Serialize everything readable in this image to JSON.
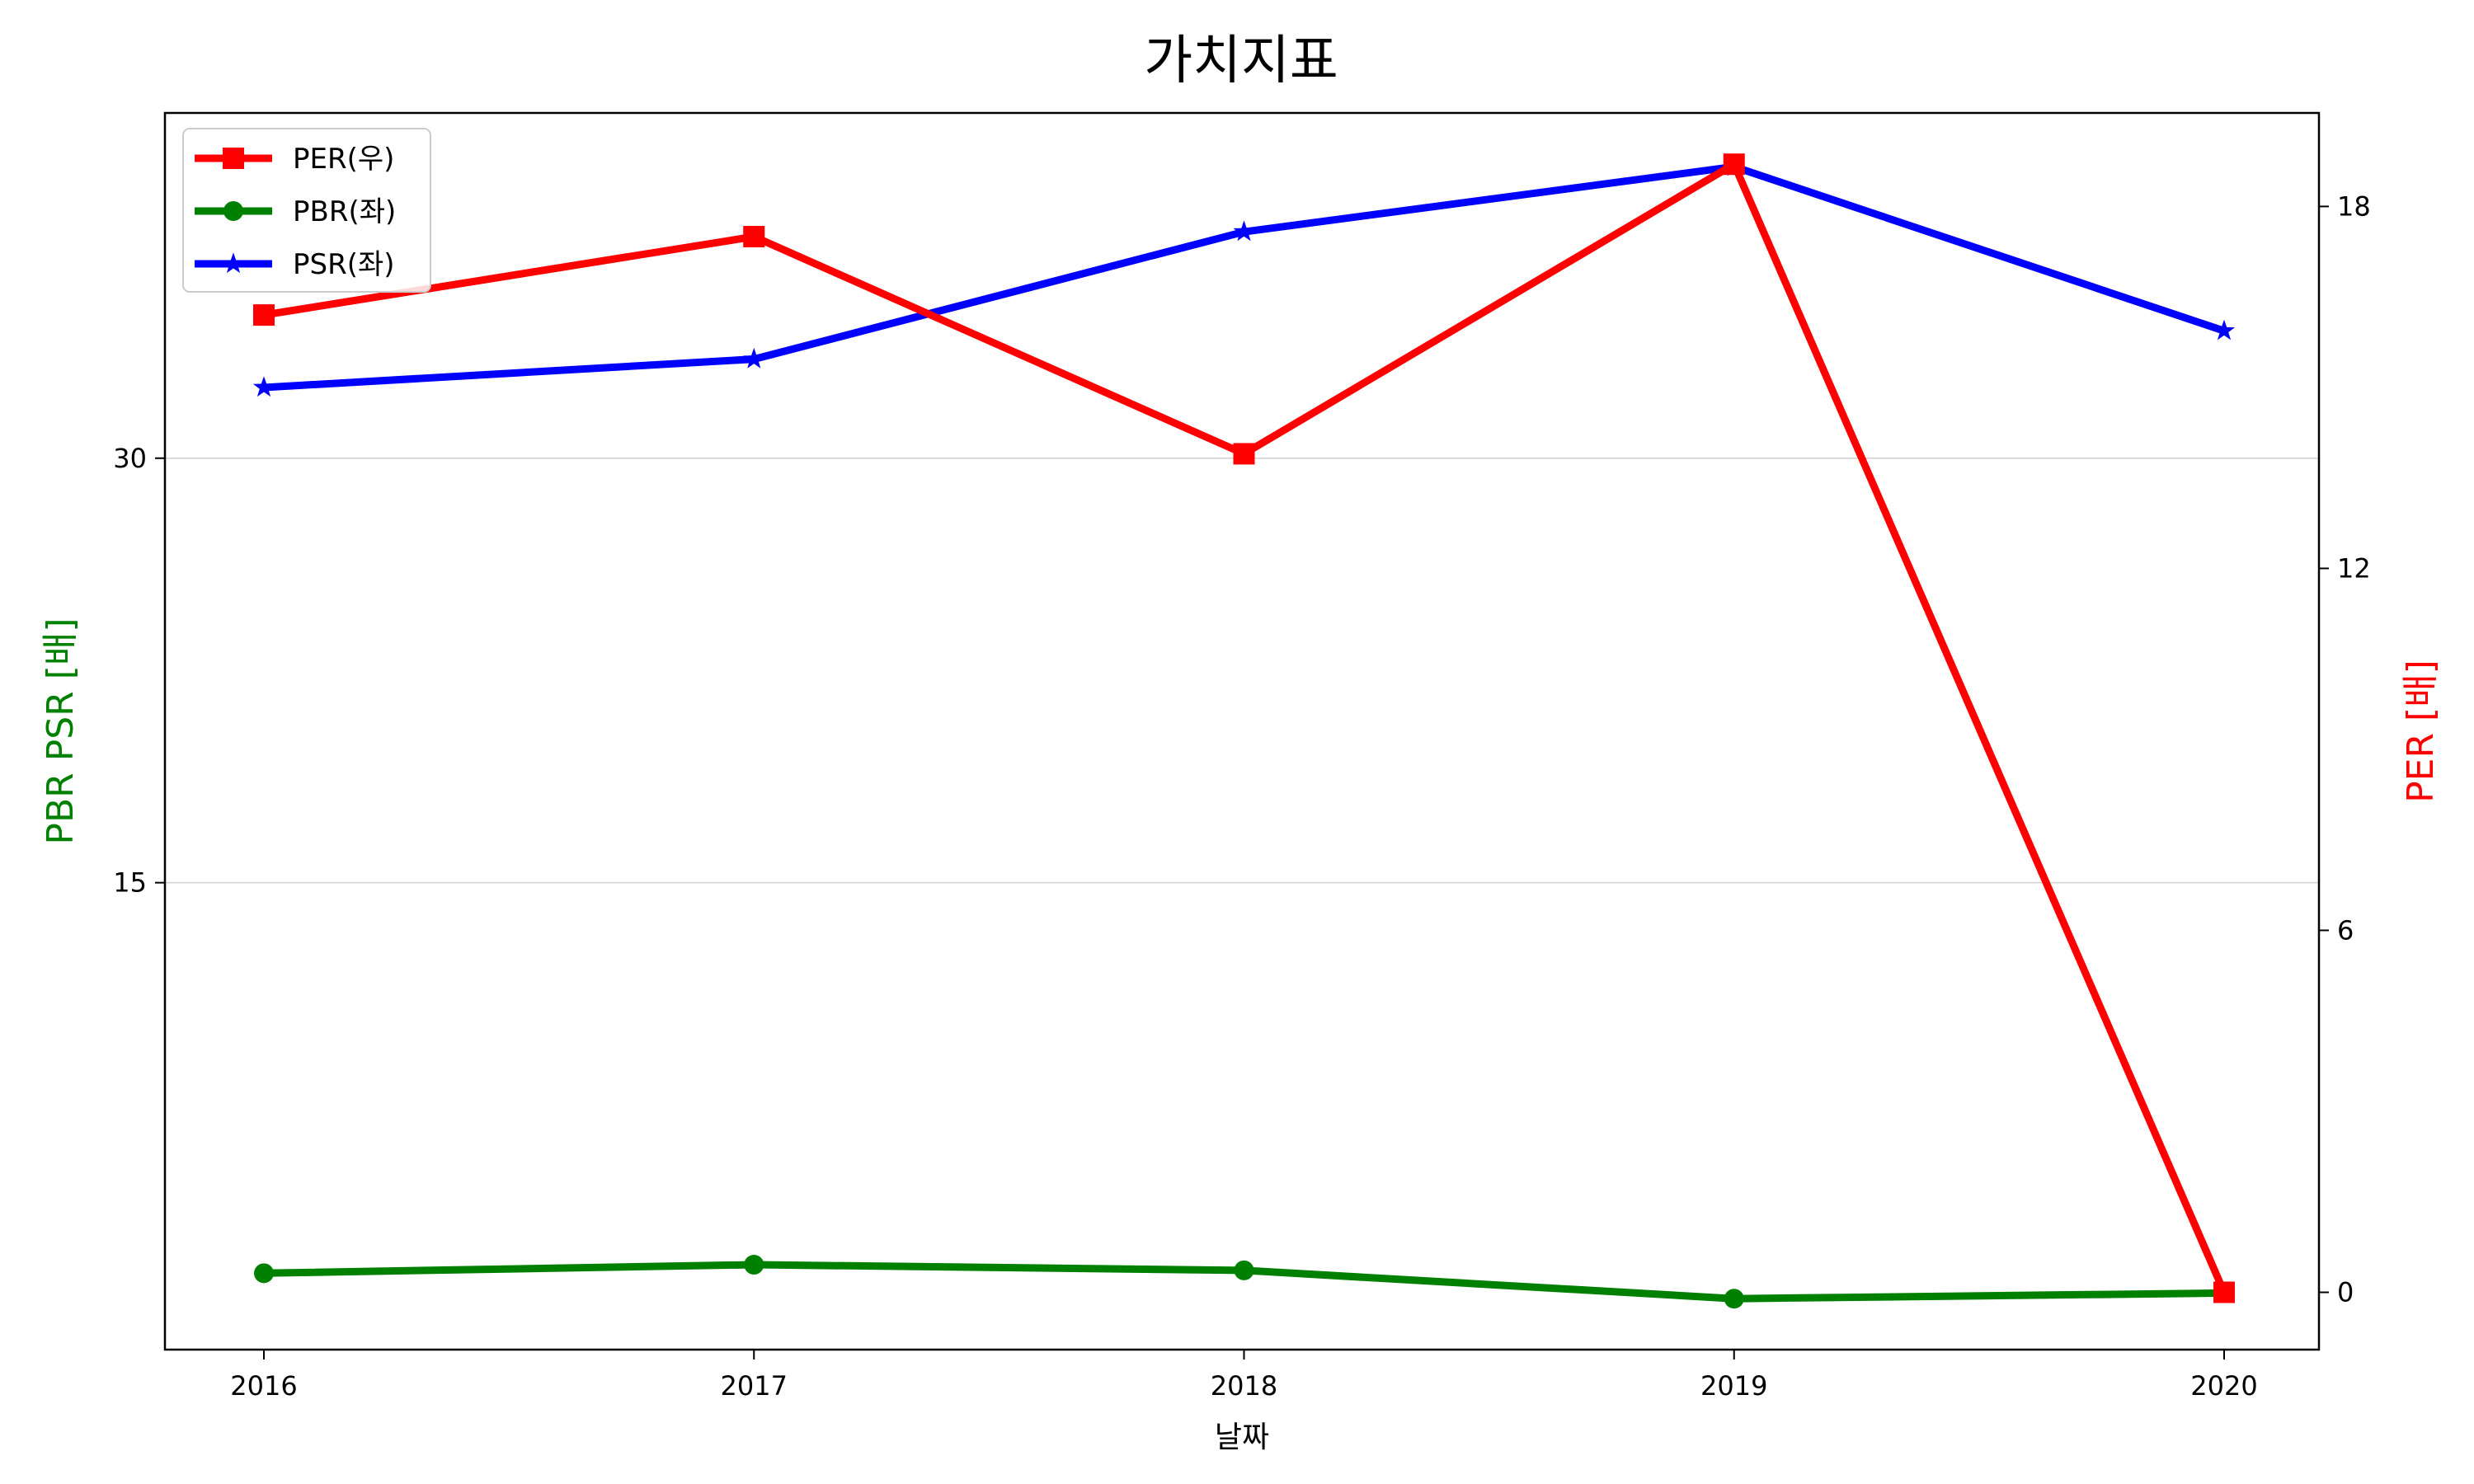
{
  "chart_data": {
    "type": "line",
    "title": "가치지표",
    "xlabel": "날짜",
    "ylabel_left": "PBR PSR [배]",
    "ylabel_right": "PER [배]",
    "categories": [
      "2016",
      "2017",
      "2018",
      "2019",
      "2020"
    ],
    "ylim_left": [
      -1.5,
      42.2
    ],
    "yticks_left": [
      15,
      30
    ],
    "ylim_right": [
      -0.95,
      19.55
    ],
    "yticks_right": [
      0,
      6,
      12,
      18
    ],
    "grid": "horizontal (left axis)",
    "legend_position": "upper-left",
    "series": [
      {
        "name": "PER(우)",
        "axis": "right",
        "color": "#ff0000",
        "marker": "square",
        "values": [
          16.2,
          17.5,
          13.9,
          18.7,
          0.0
        ]
      },
      {
        "name": "PBR(좌)",
        "axis": "left",
        "color": "#008000",
        "marker": "circle",
        "values": [
          1.2,
          1.5,
          1.3,
          0.3,
          0.5
        ]
      },
      {
        "name": "PSR(좌)",
        "axis": "left",
        "color": "#0000ff",
        "marker": "star",
        "values": [
          32.5,
          33.5,
          38.0,
          40.3,
          34.5
        ]
      }
    ]
  }
}
